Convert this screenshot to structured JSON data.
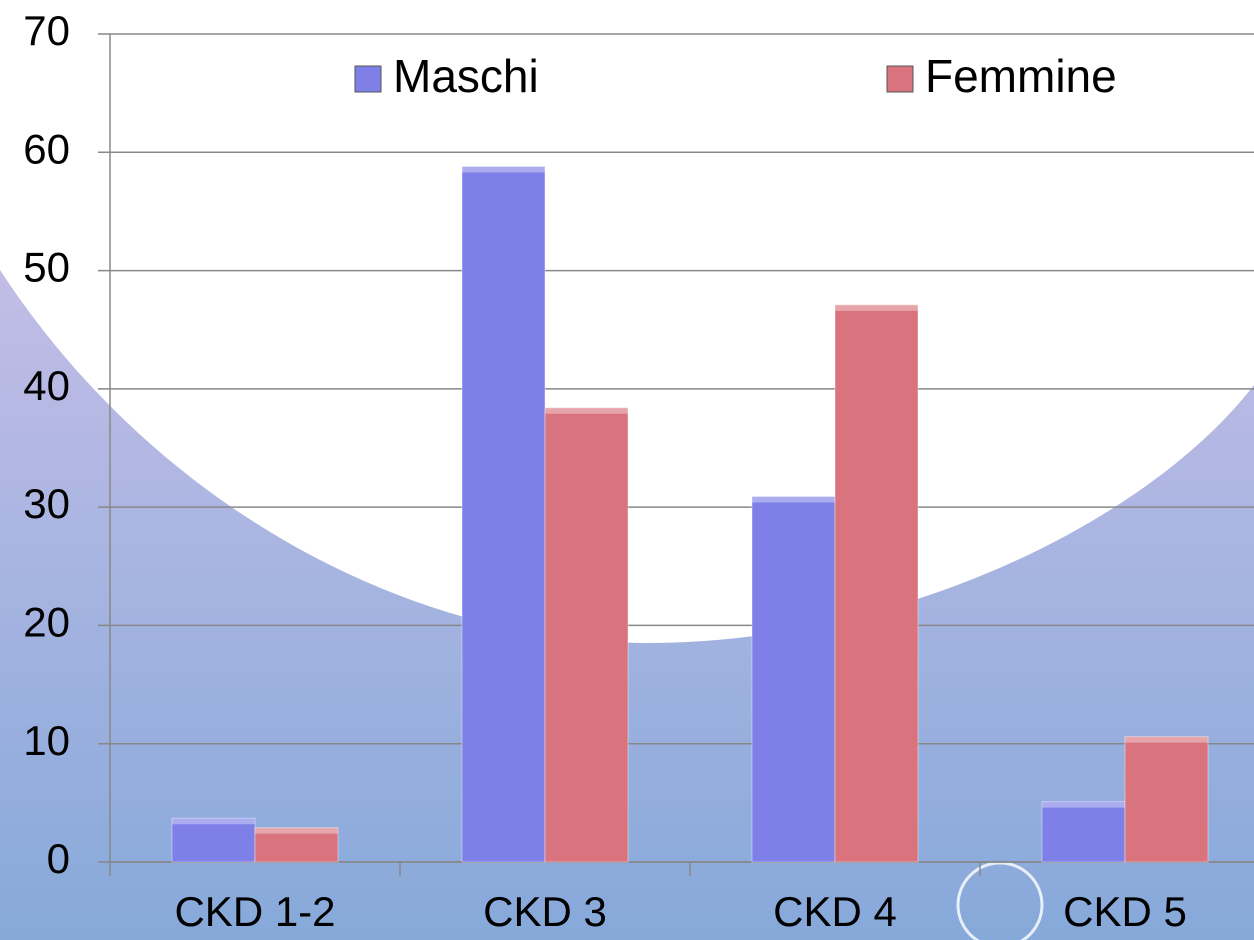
{
  "chart_data": {
    "type": "bar",
    "categories": [
      "CKD 1-2",
      "CKD 3",
      "CKD 4",
      "CKD 5"
    ],
    "series": [
      {
        "name": "Maschi",
        "color": "#7f7fe8",
        "values": [
          3.7,
          58.8,
          30.9,
          5.1
        ]
      },
      {
        "name": "Femmine",
        "color": "#d9737e",
        "values": [
          2.9,
          38.4,
          47.1,
          10.6
        ]
      }
    ],
    "ylim": [
      0,
      70
    ],
    "yticks": [
      0,
      10,
      20,
      30,
      40,
      50,
      60,
      70
    ],
    "grid": true,
    "legend": "top"
  }
}
